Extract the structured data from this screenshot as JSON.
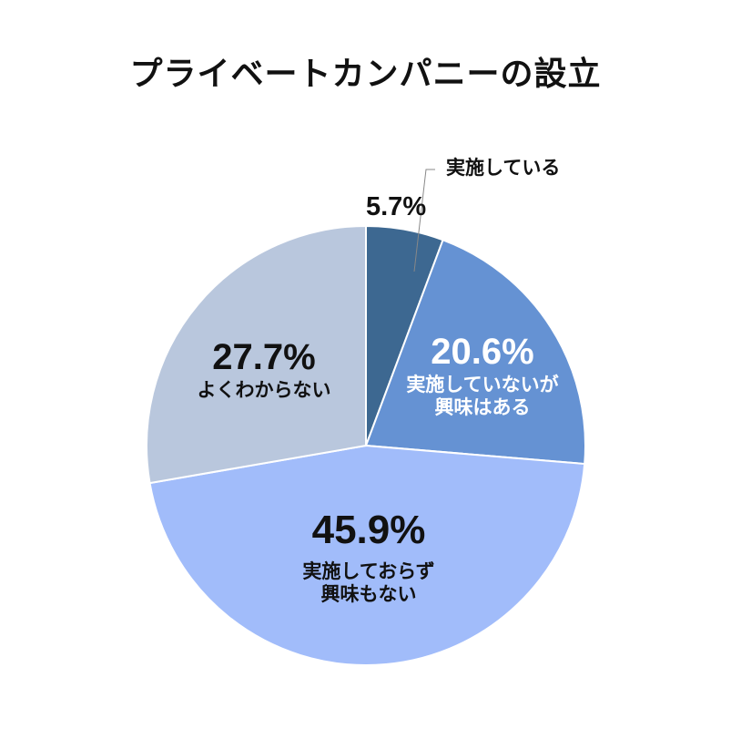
{
  "title": "プライベートカンパニーの設立",
  "chart_data": {
    "type": "pie",
    "title": "プライベートカンパニーの設立",
    "start_angle": "12 o'clock, clockwise",
    "slices": [
      {
        "label": "実施している",
        "value": 5.7,
        "value_label": "5.7%",
        "color": "#3d6891"
      },
      {
        "label": "実施していないが興味はある",
        "value": 20.6,
        "value_label": "20.6%",
        "color": "#6592d3"
      },
      {
        "label": "実施しておらず興味もない",
        "value": 45.9,
        "value_label": "45.9%",
        "color": "#a1bcfa"
      },
      {
        "label": "よくわからない",
        "value": 27.7,
        "value_label": "27.7%",
        "color": "#b9c7dd"
      }
    ]
  },
  "labels": {
    "s0": {
      "pct": "5.7%",
      "line1": "実施している"
    },
    "s1": {
      "pct": "20.6%",
      "line1": "実施していないが",
      "line2": "興味はある"
    },
    "s2": {
      "pct": "45.9%",
      "line1": "実施しておらず",
      "line2": "興味もない"
    },
    "s3": {
      "pct": "27.7%",
      "line1": "よくわからない"
    }
  }
}
